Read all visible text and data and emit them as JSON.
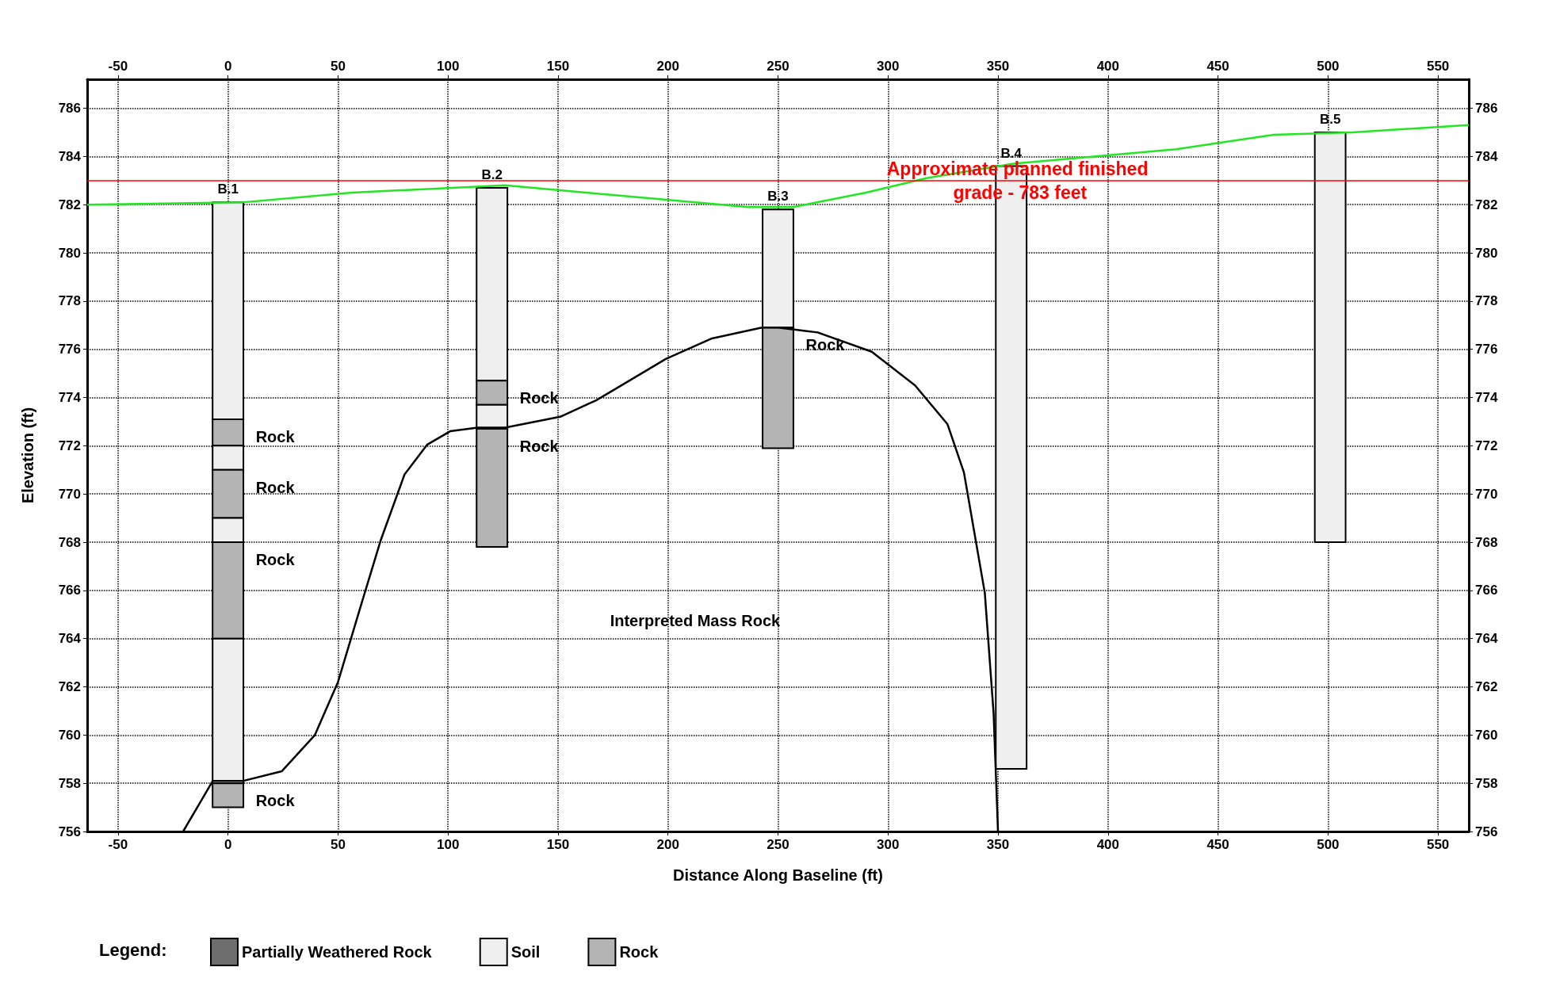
{
  "chart_data": {
    "type": "bar",
    "xlabel": "Distance Along Baseline (ft)",
    "ylabel": "Elevation (ft)",
    "legend_title": "Legend:",
    "x": [
      0,
      120,
      250,
      356,
      501
    ],
    "series": [
      {
        "name": "Partially Weathered Rock",
        "color": "#6e6e6e",
        "base": [
          null,
          null,
          null,
          null,
          null
        ],
        "values": [
          null,
          null,
          null,
          null,
          null
        ]
      },
      {
        "name": "Soil",
        "color": "#efefef",
        "base": [
          773.1,
          774.7,
          776.9,
          758.6,
          768
        ],
        "values": [
          9.0,
          8.0,
          4.9,
          25.0,
          17.0
        ]
      },
      {
        "name": "Rock",
        "color": "#b4b4b4",
        "base": [
          772,
          773.7,
          771.9,
          null,
          null
        ],
        "values": [
          1.1,
          1.0,
          5.0,
          null,
          null
        ]
      },
      {
        "color": "#efefef",
        "base": [
          771,
          772.7,
          null,
          null,
          null
        ],
        "values": [
          1.0,
          1.0,
          null,
          null,
          null
        ]
      },
      {
        "color": "#b4b4b4",
        "base": [
          769,
          767.8,
          null,
          null,
          null
        ],
        "values": [
          2.0,
          4.9,
          null,
          null,
          null
        ]
      },
      {
        "color": "#efefef",
        "base": [
          768,
          null,
          null,
          null,
          null
        ],
        "values": [
          1.0,
          null,
          null,
          null,
          null
        ]
      },
      {
        "color": "#b4b4b4",
        "base": [
          764,
          null,
          null,
          null,
          null
        ],
        "values": [
          4.0,
          null,
          null,
          null,
          null
        ]
      },
      {
        "color": "#efefef",
        "base": [
          758,
          null,
          null,
          null,
          null
        ],
        "values": [
          6.0,
          null,
          null,
          null,
          null
        ]
      },
      {
        "color": "#b4b4b4",
        "base": [
          757,
          null,
          null,
          null,
          null
        ],
        "values": [
          1.0,
          null,
          null,
          null,
          null
        ]
      },
      {
        "type": "line",
        "color": "#22e622",
        "x": [
          -64,
          7.3,
          56.3,
          126,
          236.5,
          256.9,
          290,
          317.5,
          357,
          431,
          475.4,
          511,
          564
        ],
        "values": [
          782,
          782.1,
          782.5,
          782.8,
          781.9,
          781.9,
          782.5,
          783.1,
          783.7,
          784.3,
          784.9,
          785.0,
          785.3
        ]
      },
      {
        "type": "line",
        "color": "#000000",
        "x": [
          -20.4,
          -6.9,
          7,
          24.5,
          39.5,
          50,
          60.5,
          69.5,
          80.2,
          90.6,
          101,
          113.5,
          126,
          151,
          167.7,
          199,
          220,
          242.7,
          250,
          268,
          292.6,
          312.3,
          327,
          334.5,
          344,
          348,
          350
        ],
        "values": [
          756,
          758.1,
          758.1,
          758.5,
          760,
          762.2,
          765.4,
          768.1,
          770.8,
          772.05,
          772.6,
          772.75,
          772.75,
          773.2,
          773.9,
          775.6,
          776.45,
          776.9,
          776.9,
          776.7,
          775.9,
          774.5,
          772.9,
          770.9,
          765.9,
          760.9,
          756
        ]
      }
    ],
    "xlim": [
      -64,
      564
    ],
    "xticks": [
      -50,
      0,
      50,
      100,
      150,
      200,
      250,
      300,
      350,
      400,
      450,
      500,
      550
    ],
    "x2lim": [
      -64,
      564
    ],
    "x2ticks": [
      -50,
      0,
      50,
      100,
      150,
      200,
      250,
      300,
      350,
      400,
      450,
      500,
      550
    ],
    "ylim": [
      756,
      787.2
    ],
    "yticks": [
      756,
      758,
      760,
      762,
      764,
      766,
      768,
      770,
      772,
      774,
      776,
      778,
      780,
      782,
      784,
      786
    ],
    "y2lim": [
      756,
      787.2
    ],
    "y2ticks": [
      756,
      758,
      760,
      762,
      764,
      766,
      768,
      770,
      772,
      774,
      776,
      778,
      780,
      782,
      784,
      786
    ],
    "ref_lines": [
      {
        "axis": "y",
        "value": 783,
        "label": "Approximate planned finished grade - 783 feet",
        "color": "#ff0000"
      }
    ],
    "annotations": [
      {
        "text": "B.1",
        "x": 0,
        "y": 782.1
      },
      {
        "text": "B.2",
        "x": 120,
        "y": 782.7
      },
      {
        "text": "B.3",
        "x": 250,
        "y": 781.8
      },
      {
        "text": "B.4",
        "x": 356,
        "y": 783.6
      },
      {
        "text": "B.5",
        "x": 501,
        "y": 785.0
      },
      {
        "text": "Rock",
        "x": 0,
        "y": 773.1
      },
      {
        "text": "Rock",
        "x": 0,
        "y": 771.0
      },
      {
        "text": "Rock",
        "x": 0,
        "y": 768.0
      },
      {
        "text": "Rock",
        "x": 0,
        "y": 758.0
      },
      {
        "text": "Rock",
        "x": 120,
        "y": 774.7
      },
      {
        "text": "Rock",
        "x": 120,
        "y": 772.7
      },
      {
        "text": "Rock",
        "x": 250,
        "y": 776.9
      },
      "Interpreted Mass Rock"
    ],
    "grid": true,
    "legend": "bottom left"
  }
}
